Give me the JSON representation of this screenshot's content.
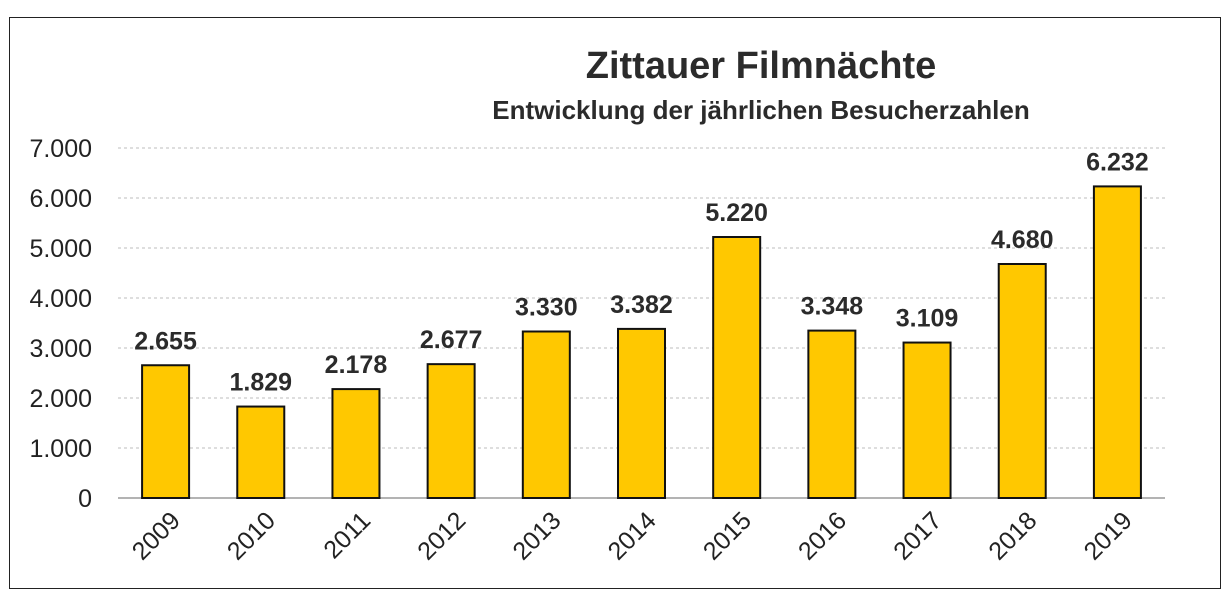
{
  "chart_data": {
    "type": "bar",
    "title": "Zittauer Filmnächte",
    "subtitle": "Entwicklung der jährlichen Besucherzahlen",
    "categories": [
      "2009",
      "2010",
      "2011",
      "2012",
      "2013",
      "2014",
      "2015",
      "2016",
      "2017",
      "2018",
      "2019"
    ],
    "values": [
      2655,
      1829,
      2178,
      2677,
      3330,
      3382,
      5220,
      3348,
      3109,
      4680,
      6232
    ],
    "value_labels": [
      "2.655",
      "1.829",
      "2.178",
      "2.677",
      "3.330",
      "3.382",
      "5.220",
      "3.348",
      "3.109",
      "4.680",
      "6.232"
    ],
    "ylim": [
      0,
      7000
    ],
    "yticks": [
      0,
      1000,
      2000,
      3000,
      4000,
      5000,
      6000,
      7000
    ],
    "ytick_labels": [
      "0",
      "1.000",
      "2.000",
      "3.000",
      "4.000",
      "5.000",
      "6.000",
      "7.000"
    ],
    "grid": true,
    "legend": "none",
    "colors": {
      "bar_fill": "#FFC800",
      "bar_stroke": "#111111",
      "grid": "#bdbdbd",
      "axis": "#9a9a9a"
    }
  }
}
